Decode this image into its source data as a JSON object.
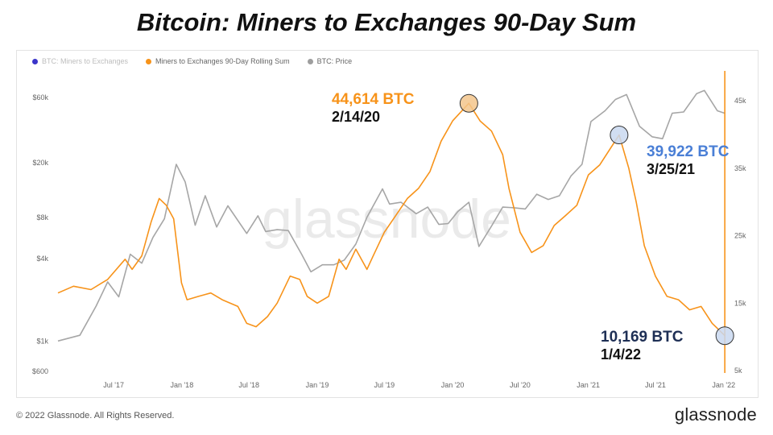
{
  "title": "Bitcoin: Miners to Exchanges 90-Day Sum",
  "footer": {
    "copyright": "© 2022 Glassnode. All Rights Reserved.",
    "brand": "glassnode"
  },
  "watermark": "glassnode",
  "legend": [
    {
      "label": "BTC: Miners to Exchanges",
      "color": "#3b35c9",
      "dim": true
    },
    {
      "label": "Miners to Exchanges 90-Day Rolling Sum",
      "color": "#f7931a",
      "dim": false
    },
    {
      "label": "BTC: Price",
      "color": "#9e9e9e",
      "dim": false
    }
  ],
  "annotations": {
    "peak1": {
      "value": "44,614 BTC",
      "date": "2/14/20",
      "color": "#f7931a"
    },
    "peak2": {
      "value": "39,922 BTC",
      "date": "3/25/21",
      "color": "#4a7fd6"
    },
    "low": {
      "value": "10,169 BTC",
      "date": "1/4/22",
      "color": "#1e2f55"
    }
  },
  "colors": {
    "rolling_sum": "#f7931a",
    "price": "#a6a6a6",
    "highlight": "#f7931a"
  },
  "chart_data": {
    "type": "line",
    "x_ticks": [
      "Jul '17",
      "Jan '18",
      "Jul '18",
      "Jan '19",
      "Jul '19",
      "Jan '20",
      "Jul '20",
      "Jan '21",
      "Jul '21",
      "Jan '22"
    ],
    "left_axis": {
      "scale": "log",
      "ticks": [
        "$600",
        "$1k",
        "$4k",
        "$8k",
        "$20k",
        "$60k"
      ],
      "tick_values": [
        600,
        1000,
        4000,
        8000,
        20000,
        60000
      ]
    },
    "right_axis": {
      "scale": "linear",
      "ticks": [
        "5k",
        "15k",
        "25k",
        "35k",
        "45k"
      ],
      "tick_values": [
        5000,
        15000,
        25000,
        35000,
        45000
      ]
    },
    "series": [
      {
        "name": "Miners to Exchanges 90-Day Rolling Sum",
        "axis": "right",
        "points": [
          [
            "2017-02-01",
            16500
          ],
          [
            "2017-03-15",
            17500
          ],
          [
            "2017-05-01",
            17000
          ],
          [
            "2017-06-15",
            18500
          ],
          [
            "2017-08-01",
            21500
          ],
          [
            "2017-08-20",
            20000
          ],
          [
            "2017-09-15",
            22000
          ],
          [
            "2017-10-10",
            27000
          ],
          [
            "2017-11-01",
            30500
          ],
          [
            "2017-11-20",
            29500
          ],
          [
            "2017-12-10",
            27500
          ],
          [
            "2017-12-31",
            18000
          ],
          [
            "2018-01-15",
            15500
          ],
          [
            "2018-02-15",
            16000
          ],
          [
            "2018-03-20",
            16500
          ],
          [
            "2018-04-20",
            15500
          ],
          [
            "2018-06-01",
            14500
          ],
          [
            "2018-06-25",
            12000
          ],
          [
            "2018-07-20",
            11500
          ],
          [
            "2018-08-20",
            13000
          ],
          [
            "2018-09-15",
            15000
          ],
          [
            "2018-10-20",
            19000
          ],
          [
            "2018-11-15",
            18500
          ],
          [
            "2018-12-05",
            16000
          ],
          [
            "2019-01-01",
            15000
          ],
          [
            "2019-02-01",
            16000
          ],
          [
            "2019-03-01",
            21500
          ],
          [
            "2019-03-20",
            20000
          ],
          [
            "2019-04-15",
            23000
          ],
          [
            "2019-05-15",
            20000
          ],
          [
            "2019-06-01",
            22000
          ],
          [
            "2019-07-01",
            25500
          ],
          [
            "2019-08-01",
            28000
          ],
          [
            "2019-09-01",
            30500
          ],
          [
            "2019-10-01",
            32000
          ],
          [
            "2019-11-01",
            34500
          ],
          [
            "2019-12-01",
            39000
          ],
          [
            "2020-01-01",
            42000
          ],
          [
            "2020-02-14",
            44614
          ],
          [
            "2020-03-15",
            42000
          ],
          [
            "2020-04-15",
            40500
          ],
          [
            "2020-05-15",
            37000
          ],
          [
            "2020-06-01",
            32000
          ],
          [
            "2020-07-01",
            25500
          ],
          [
            "2020-08-01",
            22500
          ],
          [
            "2020-09-01",
            23500
          ],
          [
            "2020-10-01",
            26500
          ],
          [
            "2020-11-01",
            28000
          ],
          [
            "2020-12-01",
            29500
          ],
          [
            "2021-01-01",
            34000
          ],
          [
            "2021-02-01",
            35500
          ],
          [
            "2021-03-25",
            39922
          ],
          [
            "2021-04-20",
            35000
          ],
          [
            "2021-05-10",
            30000
          ],
          [
            "2021-06-01",
            23500
          ],
          [
            "2021-07-01",
            19000
          ],
          [
            "2021-08-01",
            16000
          ],
          [
            "2021-09-01",
            15500
          ],
          [
            "2021-10-01",
            14000
          ],
          [
            "2021-11-01",
            14500
          ],
          [
            "2021-12-01",
            12000
          ],
          [
            "2022-01-04",
            10169
          ]
        ]
      },
      {
        "name": "BTC: Price",
        "axis": "left",
        "points": [
          [
            "2017-02-01",
            1000
          ],
          [
            "2017-04-01",
            1100
          ],
          [
            "2017-05-15",
            1800
          ],
          [
            "2017-06-15",
            2700
          ],
          [
            "2017-07-15",
            2100
          ],
          [
            "2017-08-15",
            4300
          ],
          [
            "2017-09-15",
            3700
          ],
          [
            "2017-10-15",
            5700
          ],
          [
            "2017-11-15",
            7800
          ],
          [
            "2017-12-17",
            19500
          ],
          [
            "2018-01-10",
            14500
          ],
          [
            "2018-02-06",
            7000
          ],
          [
            "2018-03-05",
            11500
          ],
          [
            "2018-04-05",
            6800
          ],
          [
            "2018-05-05",
            9700
          ],
          [
            "2018-06-25",
            6100
          ],
          [
            "2018-07-25",
            8200
          ],
          [
            "2018-08-15",
            6300
          ],
          [
            "2018-09-15",
            6500
          ],
          [
            "2018-10-15",
            6400
          ],
          [
            "2018-11-20",
            4300
          ],
          [
            "2018-12-15",
            3200
          ],
          [
            "2019-01-15",
            3600
          ],
          [
            "2019-02-15",
            3600
          ],
          [
            "2019-03-15",
            3900
          ],
          [
            "2019-04-15",
            5100
          ],
          [
            "2019-05-15",
            8000
          ],
          [
            "2019-06-26",
            12900
          ],
          [
            "2019-07-15",
            10000
          ],
          [
            "2019-08-15",
            10300
          ],
          [
            "2019-09-25",
            8500
          ],
          [
            "2019-10-26",
            9500
          ],
          [
            "2019-11-25",
            7100
          ],
          [
            "2019-12-20",
            7200
          ],
          [
            "2020-01-15",
            8800
          ],
          [
            "2020-02-14",
            10300
          ],
          [
            "2020-03-12",
            4900
          ],
          [
            "2020-04-15",
            6900
          ],
          [
            "2020-05-15",
            9500
          ],
          [
            "2020-06-15",
            9400
          ],
          [
            "2020-07-15",
            9200
          ],
          [
            "2020-08-15",
            11800
          ],
          [
            "2020-09-15",
            10800
          ],
          [
            "2020-10-15",
            11500
          ],
          [
            "2020-11-15",
            16000
          ],
          [
            "2020-12-15",
            19500
          ],
          [
            "2021-01-08",
            40000
          ],
          [
            "2021-02-15",
            48000
          ],
          [
            "2021-03-15",
            58000
          ],
          [
            "2021-04-14",
            63000
          ],
          [
            "2021-05-19",
            37000
          ],
          [
            "2021-06-22",
            31000
          ],
          [
            "2021-07-20",
            30000
          ],
          [
            "2021-08-15",
            46000
          ],
          [
            "2021-09-15",
            47000
          ],
          [
            "2021-10-20",
            64000
          ],
          [
            "2021-11-10",
            67500
          ],
          [
            "2021-12-15",
            48000
          ],
          [
            "2022-01-04",
            46000
          ]
        ]
      }
    ]
  }
}
